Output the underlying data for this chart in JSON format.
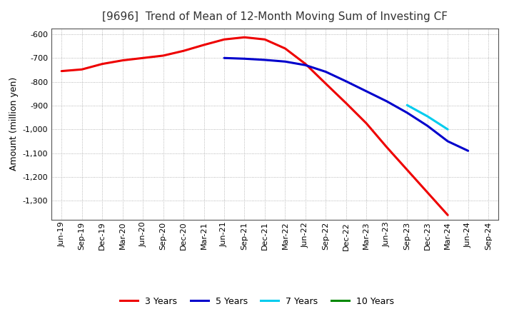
{
  "title": "[9696]  Trend of Mean of 12-Month Moving Sum of Investing CF",
  "ylabel": "Amount (million yen)",
  "background_color": "#ffffff",
  "plot_bg_color": "#ffffff",
  "grid_color": "#999999",
  "x_labels": [
    "Jun-19",
    "Sep-19",
    "Dec-19",
    "Mar-20",
    "Jun-20",
    "Sep-20",
    "Dec-20",
    "Mar-21",
    "Jun-21",
    "Sep-21",
    "Dec-21",
    "Mar-22",
    "Jun-22",
    "Sep-22",
    "Dec-22",
    "Mar-23",
    "Jun-23",
    "Sep-23",
    "Dec-23",
    "Mar-24",
    "Jun-24",
    "Sep-24"
  ],
  "series": [
    {
      "name": "3 Years",
      "color": "#ee0000",
      "values": [
        -755,
        -748,
        -725,
        -710,
        -700,
        -690,
        -670,
        -645,
        -622,
        -613,
        -622,
        -660,
        -725,
        -808,
        -890,
        -975,
        -1075,
        -1170,
        -1265,
        -1360,
        null,
        null
      ]
    },
    {
      "name": "5 Years",
      "color": "#0000cc",
      "values": [
        null,
        null,
        null,
        null,
        null,
        null,
        null,
        null,
        -700,
        -703,
        -708,
        -715,
        -730,
        -758,
        -798,
        -840,
        -882,
        -930,
        -985,
        -1050,
        -1090,
        null
      ]
    },
    {
      "name": "7 Years",
      "color": "#00ccee",
      "values": [
        null,
        null,
        null,
        null,
        null,
        null,
        null,
        null,
        null,
        null,
        null,
        null,
        null,
        null,
        null,
        null,
        null,
        -898,
        -945,
        -1000,
        null,
        null
      ]
    },
    {
      "name": "10 Years",
      "color": "#008800",
      "values": [
        null,
        null,
        null,
        null,
        null,
        null,
        null,
        null,
        null,
        null,
        null,
        null,
        null,
        null,
        null,
        null,
        null,
        null,
        null,
        null,
        null,
        null
      ]
    }
  ],
  "ylim": [
    -1380,
    -575
  ],
  "yticks": [
    -600,
    -700,
    -800,
    -900,
    -1000,
    -1100,
    -1200,
    -1300
  ],
  "title_fontsize": 11,
  "ylabel_fontsize": 9,
  "tick_fontsize": 8,
  "legend_fontsize": 9,
  "line_width": 2.2
}
